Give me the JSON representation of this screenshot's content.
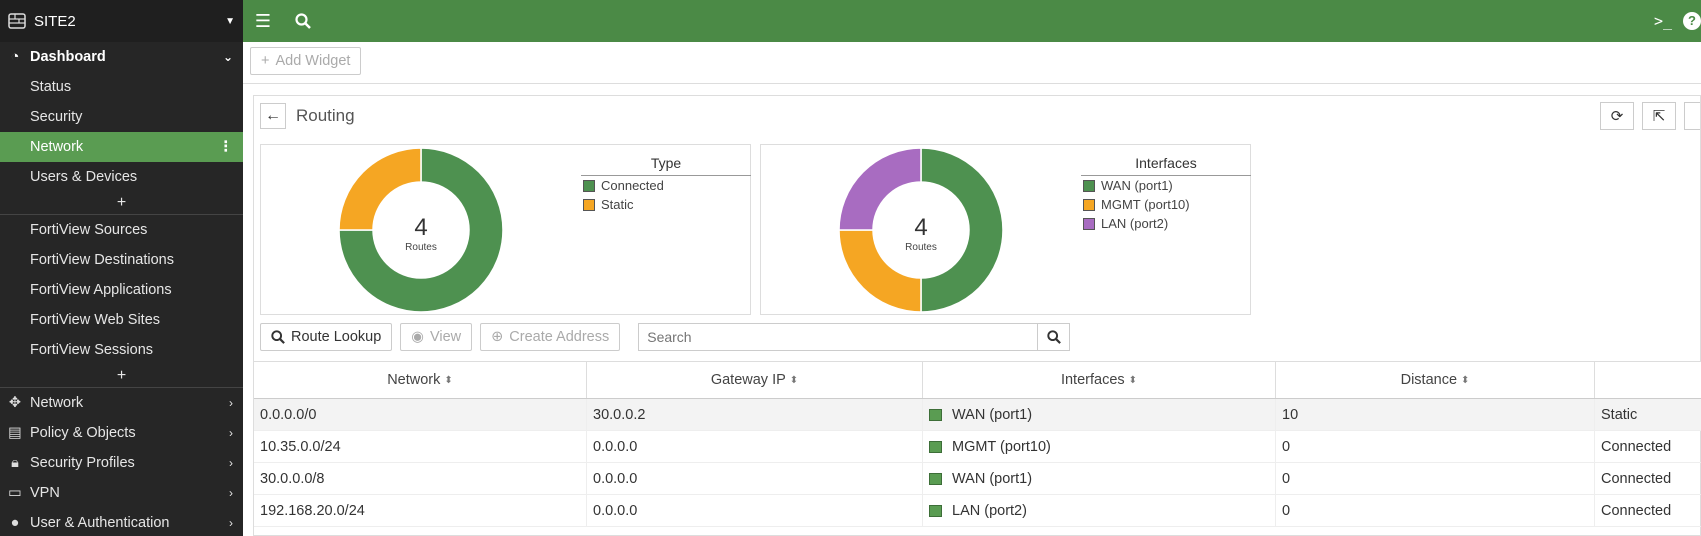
{
  "sidebar": {
    "site_name": "SITE2",
    "dashboard": "Dashboard",
    "dashboard_items": [
      "Status",
      "Security",
      "Network",
      "Users & Devices"
    ],
    "fortiview_items": [
      "FortiView Sources",
      "FortiView Destinations",
      "FortiView Applications",
      "FortiView Web Sites",
      "FortiView Sessions"
    ],
    "sections": [
      "Network",
      "Policy & Objects",
      "Security Profiles",
      "VPN",
      "User & Authentication"
    ],
    "plus": "+"
  },
  "toolbar": {
    "add_widget": "Add Widget"
  },
  "panel": {
    "title": "Routing"
  },
  "charts": {
    "type": {
      "center_value": "4",
      "center_label": "Routes",
      "legend_title": "Type",
      "items": [
        {
          "name": "Connected",
          "value": 3,
          "color": "#4e9150"
        },
        {
          "name": "Static",
          "value": 1,
          "color": "#f5a623"
        }
      ]
    },
    "interfaces": {
      "center_value": "4",
      "center_label": "Routes",
      "legend_title": "Interfaces",
      "items": [
        {
          "name": "WAN (port1)",
          "value": 2,
          "color": "#4e9150"
        },
        {
          "name": "MGMT (port10)",
          "value": 1,
          "color": "#f5a623"
        },
        {
          "name": "LAN (port2)",
          "value": 1,
          "color": "#a86cc1"
        }
      ]
    }
  },
  "table_toolbar": {
    "route_lookup": "Route Lookup",
    "view": "View",
    "create_address": "Create Address",
    "search_placeholder": "Search"
  },
  "table": {
    "columns": [
      "Network",
      "Gateway IP",
      "Interfaces",
      "Distance"
    ],
    "rows": [
      {
        "network": "0.0.0.0/0",
        "gateway": "30.0.0.2",
        "interface": "WAN (port1)",
        "distance": "10",
        "type": "Static"
      },
      {
        "network": "10.35.0.0/24",
        "gateway": "0.0.0.0",
        "interface": "MGMT (port10)",
        "distance": "0",
        "type": "Connected"
      },
      {
        "network": "30.0.0.0/8",
        "gateway": "0.0.0.0",
        "interface": "WAN (port1)",
        "distance": "0",
        "type": "Connected"
      },
      {
        "network": "192.168.20.0/24",
        "gateway": "0.0.0.0",
        "interface": "LAN (port2)",
        "distance": "0",
        "type": "Connected"
      }
    ]
  }
}
